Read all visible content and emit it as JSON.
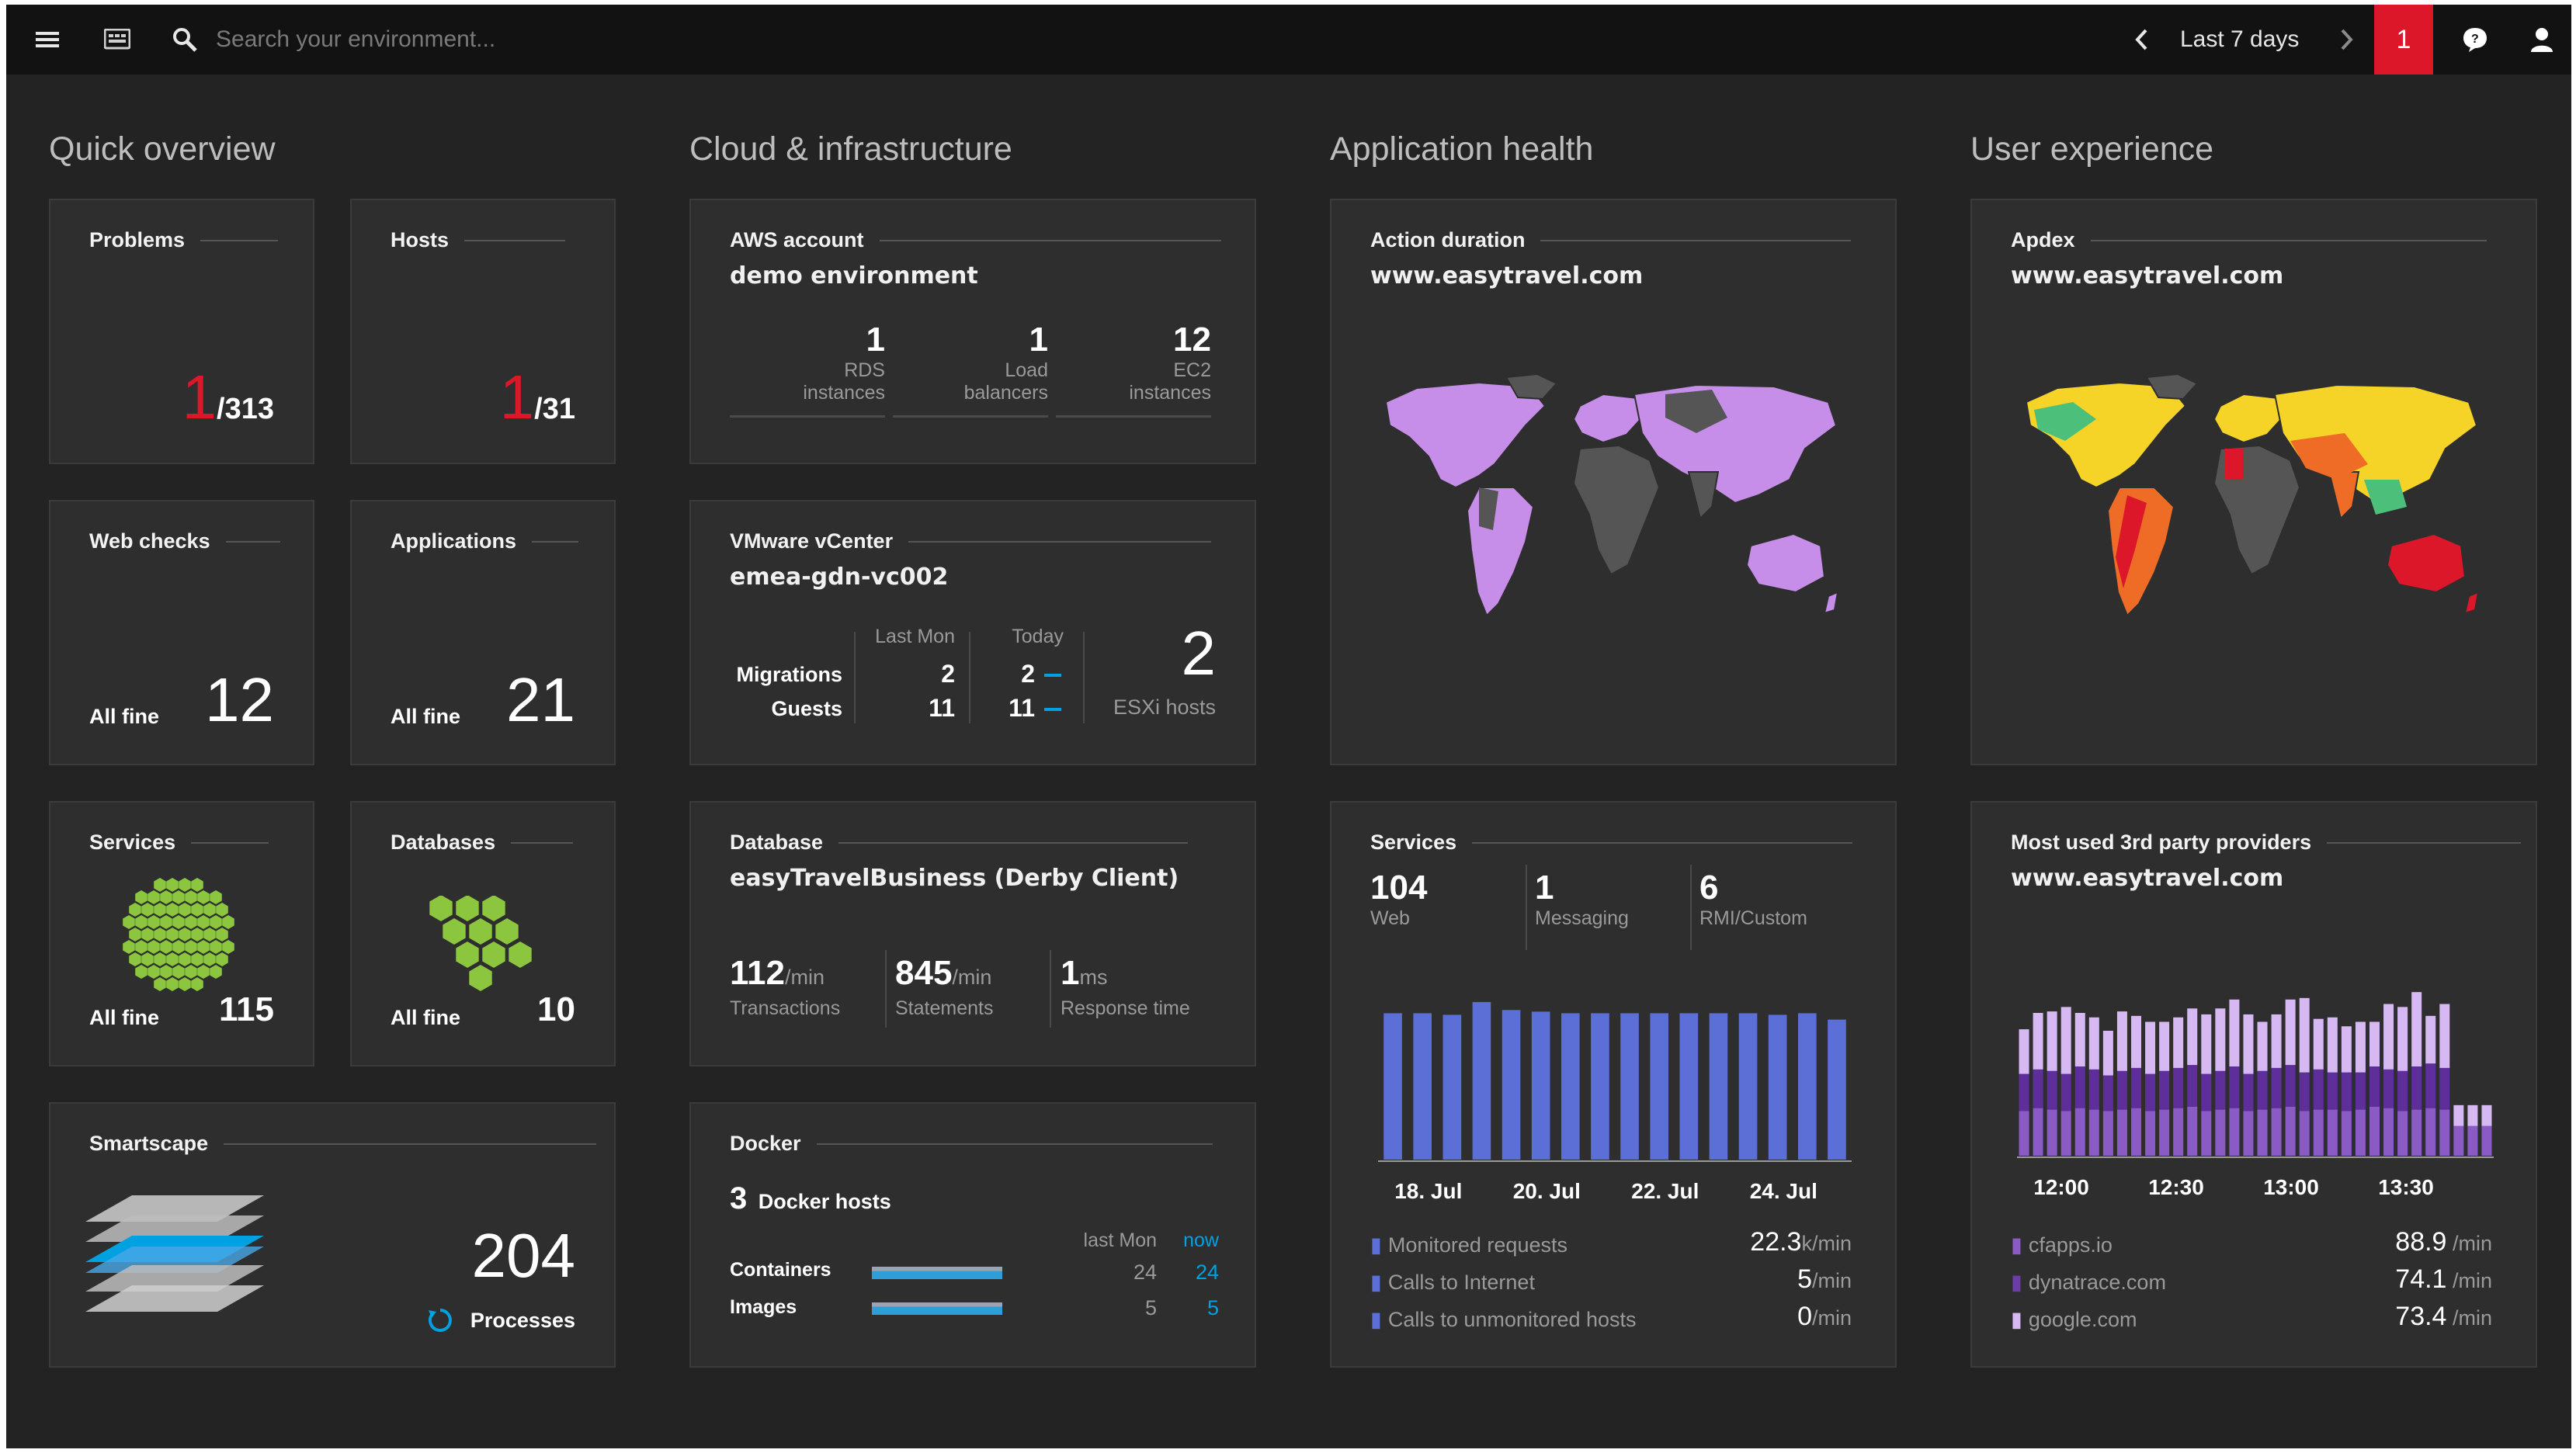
{
  "topbar": {
    "search_placeholder": "Search your environment...",
    "timeframe": "Last 7 days",
    "problem_count": "1"
  },
  "sections": {
    "quick": "Quick overview",
    "cloud": "Cloud & infrastructure",
    "apphealth": "Application health",
    "ux": "User experience"
  },
  "quick": {
    "problems": {
      "title": "Problems",
      "count": "1",
      "total": "/313"
    },
    "hosts": {
      "title": "Hosts",
      "count": "1",
      "total": "/31"
    },
    "webchecks": {
      "title": "Web checks",
      "status": "All fine",
      "count": "12"
    },
    "applications": {
      "title": "Applications",
      "status": "All fine",
      "count": "21"
    },
    "services": {
      "title": "Services",
      "status": "All fine",
      "count": "115"
    },
    "databases": {
      "title": "Databases",
      "status": "All fine",
      "count": "10"
    },
    "smartscape": {
      "title": "Smartscape",
      "count": "204",
      "label": "Processes"
    }
  },
  "aws": {
    "title": "AWS account",
    "name": "demo environment",
    "stats": [
      {
        "value": "1",
        "line1": "RDS",
        "line2": "instances"
      },
      {
        "value": "1",
        "line1": "Load",
        "line2": "balancers"
      },
      {
        "value": "12",
        "line1": "EC2",
        "line2": "instances"
      }
    ]
  },
  "vmware": {
    "title": "VMware vCenter",
    "name": "emea-gdn-vc002",
    "col_last": "Last Mon",
    "col_today": "Today",
    "rows": [
      {
        "label": "Migrations",
        "last": "2",
        "today": "2"
      },
      {
        "label": "Guests",
        "last": "11",
        "today": "11"
      }
    ],
    "esxi_count": "2",
    "esxi_label": "ESXi hosts"
  },
  "database": {
    "title": "Database",
    "name": "easyTravelBusiness (Derby Client)",
    "stats": [
      {
        "value": "112",
        "unit": "/min",
        "label": "Transactions"
      },
      {
        "value": "845",
        "unit": "/min",
        "label": "Statements"
      },
      {
        "value": "1",
        "unit": "ms",
        "label": "Response time"
      }
    ]
  },
  "docker": {
    "title": "Docker",
    "hosts_count": "3",
    "hosts_label": "Docker hosts",
    "col_last": "last Mon",
    "col_now": "now",
    "rows": [
      {
        "label": "Containers",
        "last": "24",
        "now": "24"
      },
      {
        "label": "Images",
        "last": "5",
        "now": "5"
      }
    ]
  },
  "action_duration": {
    "title": "Action duration",
    "site": "www.easytravel.com"
  },
  "apdex": {
    "title": "Apdex",
    "site": "www.easytravel.com"
  },
  "services_chart": {
    "title": "Services",
    "kpis": [
      {
        "value": "104",
        "label": "Web"
      },
      {
        "value": "1",
        "label": "Messaging"
      },
      {
        "value": "6",
        "label": "RMI/Custom"
      }
    ],
    "legend": [
      {
        "label": "Monitored requests",
        "value": "22.3",
        "unit": "k/min"
      },
      {
        "label": "Calls to Internet",
        "value": "5",
        "unit": "/min"
      },
      {
        "label": "Calls to unmonitored hosts",
        "value": "0",
        "unit": "/min"
      }
    ]
  },
  "providers": {
    "title": "Most used 3rd party providers",
    "site": "www.easytravel.com",
    "legend": [
      {
        "label": "cfapps.io",
        "value": "88.9",
        "unit": " /min"
      },
      {
        "label": "dynatrace.com",
        "value": "74.1",
        "unit": " /min"
      },
      {
        "label": "google.com",
        "value": "73.4",
        "unit": " /min"
      }
    ]
  },
  "colors": {
    "accent_red": "#dc172a",
    "blue": "#5b6fd6",
    "green": "#8cc63f",
    "light_blue": "#00a1e0"
  },
  "chart_data": [
    {
      "type": "bar",
      "x_tick_labels": [
        "18. Jul",
        "20. Jul",
        "22. Jul",
        "24. Jul"
      ],
      "series": [
        {
          "values": [
            0.92,
            0.92,
            0.91,
            0.99,
            0.94,
            0.93,
            0.92,
            0.92,
            0.92,
            0.92,
            0.92,
            0.92,
            0.92,
            0.91,
            0.92,
            0.88
          ]
        }
      ],
      "ylim": [
        0,
        1
      ],
      "grid": false
    },
    {
      "type": "bar",
      "stacked": true,
      "x_tick_labels": [
        "12:00",
        "12:30",
        "13:00",
        "13:30"
      ],
      "series": [
        {
          "values": [
            0.3,
            0.32,
            0.31,
            0.3,
            0.32,
            0.31,
            0.3,
            0.31,
            0.32,
            0.3,
            0.31,
            0.32,
            0.33,
            0.3,
            0.31,
            0.32,
            0.3,
            0.31,
            0.32,
            0.33,
            0.3,
            0.31,
            0.31,
            0.3,
            0.31,
            0.33,
            0.32,
            0.3,
            0.31,
            0.32,
            0.31,
            0.2,
            0.2,
            0.2
          ]
        },
        {
          "values": [
            0.25,
            0.26,
            0.26,
            0.25,
            0.28,
            0.27,
            0.24,
            0.26,
            0.27,
            0.25,
            0.26,
            0.27,
            0.28,
            0.25,
            0.26,
            0.28,
            0.25,
            0.26,
            0.27,
            0.28,
            0.26,
            0.27,
            0.25,
            0.26,
            0.25,
            0.27,
            0.26,
            0.27,
            0.29,
            0.3,
            0.28,
            0.0,
            0.0,
            0.0
          ]
        },
        {
          "values": [
            0.3,
            0.38,
            0.4,
            0.45,
            0.36,
            0.35,
            0.3,
            0.4,
            0.35,
            0.35,
            0.33,
            0.34,
            0.38,
            0.4,
            0.42,
            0.45,
            0.4,
            0.33,
            0.36,
            0.44,
            0.5,
            0.34,
            0.37,
            0.31,
            0.34,
            0.3,
            0.44,
            0.43,
            0.5,
            0.32,
            0.43,
            0.14,
            0.14,
            0.14
          ]
        }
      ],
      "ylim": [
        0,
        1.2
      ],
      "grid": false
    }
  ]
}
